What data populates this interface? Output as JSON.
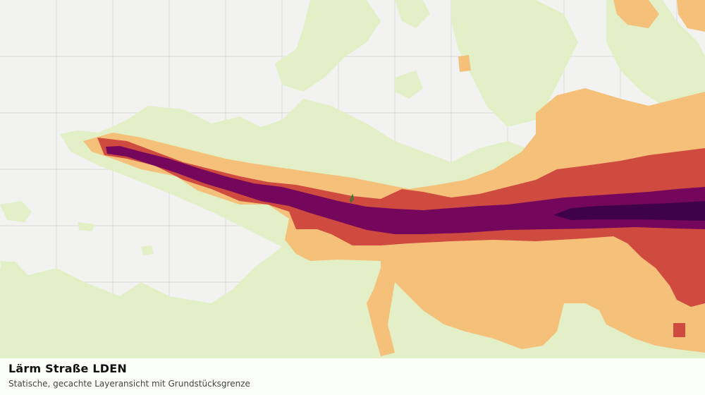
{
  "map": {
    "layer": "Lärm Straße LDEN",
    "legend_colors": {
      "background": "#f2f2f0",
      "grid": "#dcdcdc",
      "band_1_light_green": "#e3efc6",
      "band_2_orange": "#f4c07a",
      "band_3_red": "#cf4a3f",
      "band_4_purple": "#74075b",
      "band_5_dark_purple": "#3f0149",
      "parcel_boundary": "#2e7d32"
    }
  },
  "caption": {
    "title": "Lärm Straße LDEN",
    "subtitle": "Statische, gecachte Layeransicht mit Grundstücksgrenze"
  }
}
